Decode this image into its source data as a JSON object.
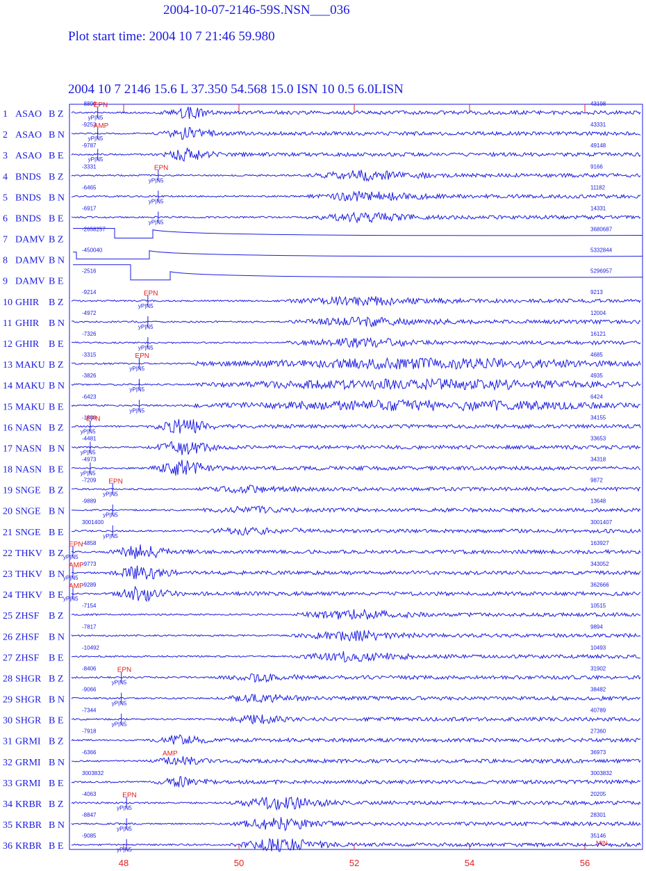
{
  "chart_data": {
    "type": "seismogram",
    "title": "2004-10-07-2146-59S.NSN___036",
    "subtitle": "Plot start time: 2004  10  7   21:46  59.980",
    "header": "2004 10 7 2146 15.6 L  37.350  54.568 15.0  ISN 10 0.5 6.0LISN",
    "x_unit_label": "MIN",
    "xlim": [
      47.06,
      57.0
    ],
    "xticks": [
      48,
      50,
      52,
      54,
      56
    ],
    "phase_text": "yP|N5",
    "color": "#1a1adf",
    "pick_color": "#e02020",
    "rows": [
      {
        "n": 1,
        "station": "ASAO",
        "channel": "B Z",
        "amp_min": -8890,
        "amp_max": 43198,
        "pick": 47.55,
        "marker": "EPN"
      },
      {
        "n": 2,
        "station": "ASAO",
        "channel": "B N",
        "amp_min": -9253,
        "amp_max": 43331,
        "pick": 47.55,
        "marker": "AMP"
      },
      {
        "n": 3,
        "station": "ASAO",
        "channel": "B E",
        "amp_min": -9787,
        "amp_max": 49148,
        "pick": 47.55,
        "marker": null
      },
      {
        "n": 4,
        "station": "BNDS",
        "channel": "B Z",
        "amp_min": -3331,
        "amp_max": 9166,
        "pick": 48.6,
        "marker": "EPN"
      },
      {
        "n": 5,
        "station": "BNDS",
        "channel": "B N",
        "amp_min": -6465,
        "amp_max": 11182,
        "pick": 48.6,
        "marker": null
      },
      {
        "n": 6,
        "station": "BNDS",
        "channel": "B E",
        "amp_min": -6917,
        "amp_max": 14331,
        "pick": 48.6,
        "marker": null
      },
      {
        "n": 7,
        "station": "DAMV",
        "channel": "B Z",
        "amp_min": -2658257,
        "amp_max": 3680687,
        "pick": null,
        "marker": null
      },
      {
        "n": 8,
        "station": "DAMV",
        "channel": "B N",
        "amp_min": -450040,
        "amp_max": 5332844,
        "pick": null,
        "marker": null
      },
      {
        "n": 9,
        "station": "DAMV",
        "channel": "B E",
        "amp_min": -2516,
        "amp_max": 5296957,
        "pick": null,
        "marker": null
      },
      {
        "n": 10,
        "station": "GHIR",
        "channel": "B Z",
        "amp_min": -9214,
        "amp_max": 9213,
        "pick": 48.42,
        "marker": "EPN"
      },
      {
        "n": 11,
        "station": "GHIR",
        "channel": "B N",
        "amp_min": -4972,
        "amp_max": 12004,
        "pick": 48.42,
        "marker": null
      },
      {
        "n": 12,
        "station": "GHIR",
        "channel": "B E",
        "amp_min": -7326,
        "amp_max": 16121,
        "pick": 48.42,
        "marker": null
      },
      {
        "n": 13,
        "station": "MAKU",
        "channel": "B Z",
        "amp_min": -3315,
        "amp_max": 4685,
        "pick": 48.27,
        "marker": "EPN"
      },
      {
        "n": 14,
        "station": "MAKU",
        "channel": "B N",
        "amp_min": -3826,
        "amp_max": 4935,
        "pick": 48.27,
        "marker": null
      },
      {
        "n": 15,
        "station": "MAKU",
        "channel": "B E",
        "amp_min": -6423,
        "amp_max": 6424,
        "pick": 48.27,
        "marker": null
      },
      {
        "n": 16,
        "station": "NASN",
        "channel": "B Z",
        "amp_min": -1800,
        "amp_max": 34155,
        "pick": 47.42,
        "marker": "EPN"
      },
      {
        "n": 17,
        "station": "NASN",
        "channel": "B N",
        "amp_min": -4481,
        "amp_max": 33653,
        "pick": 47.42,
        "marker": null
      },
      {
        "n": 18,
        "station": "NASN",
        "channel": "B E",
        "amp_min": -4973,
        "amp_max": 34318,
        "pick": 47.42,
        "marker": null
      },
      {
        "n": 19,
        "station": "SNGE",
        "channel": "B Z",
        "amp_min": -7209,
        "amp_max": 9872,
        "pick": 47.81,
        "marker": "EPN"
      },
      {
        "n": 20,
        "station": "SNGE",
        "channel": "B N",
        "amp_min": -9889,
        "amp_max": 13648,
        "pick": 47.81,
        "marker": null
      },
      {
        "n": 21,
        "station": "SNGE",
        "channel": "B E",
        "amp_min": 3001400,
        "amp_max": 3001407,
        "pick": 47.81,
        "marker": null
      },
      {
        "n": 22,
        "station": "THKV",
        "channel": "B Z",
        "amp_min": -4858,
        "amp_max": 163927,
        "pick": 47.12,
        "marker": "EPN"
      },
      {
        "n": 23,
        "station": "THKV",
        "channel": "B N",
        "amp_min": -9773,
        "amp_max": 343052,
        "pick": 47.12,
        "marker": "AMP"
      },
      {
        "n": 24,
        "station": "THKV",
        "channel": "B E",
        "amp_min": -9289,
        "amp_max": 362666,
        "pick": 47.12,
        "marker": "AMP"
      },
      {
        "n": 25,
        "station": "ZHSF",
        "channel": "B Z",
        "amp_min": -7154,
        "amp_max": 10515,
        "pick": null,
        "marker": null
      },
      {
        "n": 26,
        "station": "ZHSF",
        "channel": "B N",
        "amp_min": -7817,
        "amp_max": 9894,
        "pick": null,
        "marker": null
      },
      {
        "n": 27,
        "station": "ZHSF",
        "channel": "B E",
        "amp_min": -10492,
        "amp_max": 10493,
        "pick": null,
        "marker": null
      },
      {
        "n": 28,
        "station": "SHGR",
        "channel": "B Z",
        "amp_min": -8406,
        "amp_max": 31902,
        "pick": 47.96,
        "marker": "EPN"
      },
      {
        "n": 29,
        "station": "SHGR",
        "channel": "B N",
        "amp_min": -9066,
        "amp_max": 38482,
        "pick": 47.96,
        "marker": null
      },
      {
        "n": 30,
        "station": "SHGR",
        "channel": "B E",
        "amp_min": -7344,
        "amp_max": 40789,
        "pick": 47.96,
        "marker": null
      },
      {
        "n": 31,
        "station": "GRMI",
        "channel": "B Z",
        "amp_min": -7918,
        "amp_max": 27360,
        "pick": null,
        "marker": null
      },
      {
        "n": 32,
        "station": "GRMI",
        "channel": "B N",
        "amp_min": -6366,
        "amp_max": 36973,
        "pick": null,
        "marker": "AMP"
      },
      {
        "n": 33,
        "station": "GRMI",
        "channel": "B E",
        "amp_min": 3003832,
        "amp_max": 3003832,
        "pick": null,
        "marker": null
      },
      {
        "n": 34,
        "station": "KRBR",
        "channel": "B Z",
        "amp_min": -4063,
        "amp_max": 20205,
        "pick": 48.05,
        "marker": "EPN"
      },
      {
        "n": 35,
        "station": "KRBR",
        "channel": "B N",
        "amp_min": -8847,
        "amp_max": 28301,
        "pick": 48.05,
        "marker": null
      },
      {
        "n": 36,
        "station": "KRBR",
        "channel": "B E",
        "amp_min": -9085,
        "amp_max": 35146,
        "pick": 48.05,
        "marker": null
      }
    ]
  }
}
